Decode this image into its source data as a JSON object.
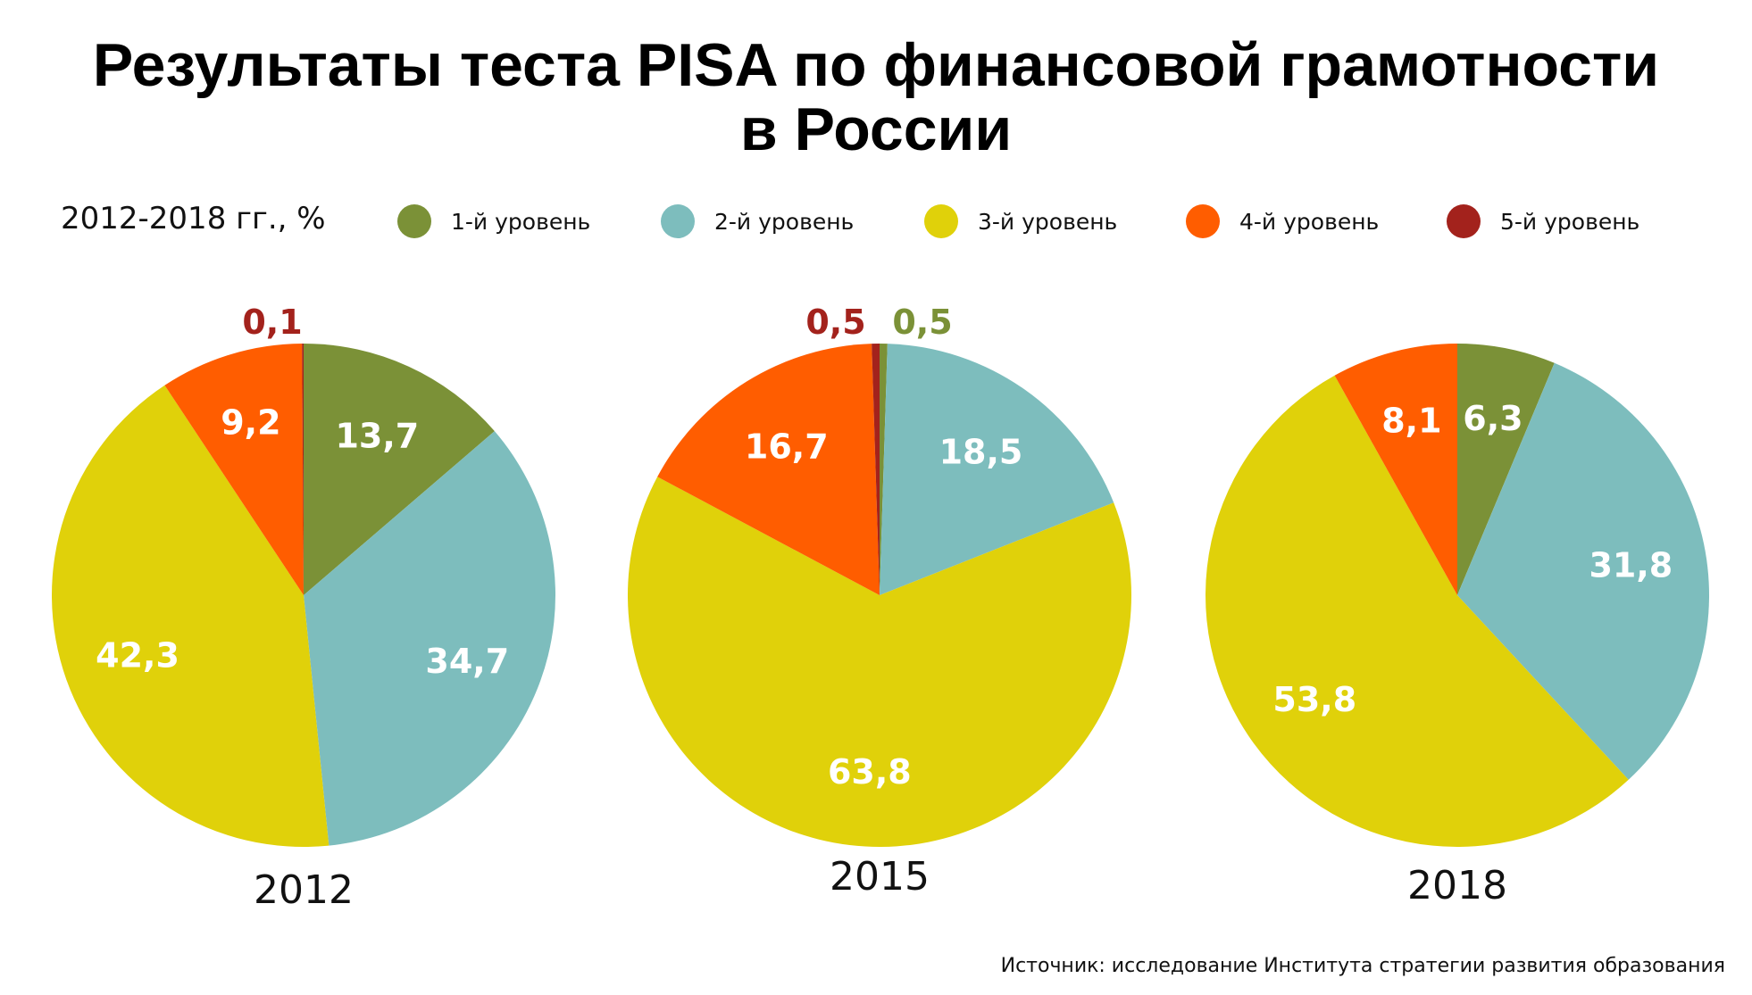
{
  "title": {
    "line1": "Результаты теста PISA по финансовой грамотности",
    "line2": "в России"
  },
  "subtitle": "2012-2018 гг., %",
  "source": "Источник: исследование Института стратегии развития образования",
  "colors": {
    "level1": "#7b9137",
    "level2": "#7dbdbd",
    "level3": "#e0d10a",
    "level4": "#ff5d00",
    "level5": "#a3221c"
  },
  "legend": [
    {
      "label": "1-й уровень",
      "color_key": "level1"
    },
    {
      "label": "2-й уровень",
      "color_key": "level2"
    },
    {
      "label": "3-й уровень",
      "color_key": "level3"
    },
    {
      "label": "4-й уровень",
      "color_key": "level4"
    },
    {
      "label": "5-й уровень",
      "color_key": "level5"
    }
  ],
  "chart_data": [
    {
      "type": "pie",
      "title": "2012",
      "slices": [
        {
          "series": "1-й уровень",
          "value": 13.7,
          "label": "13,7"
        },
        {
          "series": "2-й уровень",
          "value": 34.7,
          "label": "34,7"
        },
        {
          "series": "3-й уровень",
          "value": 42.3,
          "label": "42,3"
        },
        {
          "series": "4-й уровень",
          "value": 9.2,
          "label": "9,2"
        },
        {
          "series": "5-й уровень",
          "value": 0.1,
          "label": "0,1"
        }
      ]
    },
    {
      "type": "pie",
      "title": "2015",
      "slices": [
        {
          "series": "1-й уровень",
          "value": 0.5,
          "label": "0,5"
        },
        {
          "series": "2-й уровень",
          "value": 18.5,
          "label": "18,5"
        },
        {
          "series": "3-й уровень",
          "value": 63.8,
          "label": "63,8"
        },
        {
          "series": "4-й уровень",
          "value": 16.7,
          "label": "16,7"
        },
        {
          "series": "5-й уровень",
          "value": 0.5,
          "label": "0,5"
        }
      ]
    },
    {
      "type": "pie",
      "title": "2018",
      "slices": [
        {
          "series": "1-й уровень",
          "value": 6.3,
          "label": "6,3"
        },
        {
          "series": "2-й уровень",
          "value": 31.8,
          "label": "31,8"
        },
        {
          "series": "3-й уровень",
          "value": 53.8,
          "label": "53,8"
        },
        {
          "series": "4-й уровень",
          "value": 8.1,
          "label": "8,1"
        }
      ]
    }
  ]
}
